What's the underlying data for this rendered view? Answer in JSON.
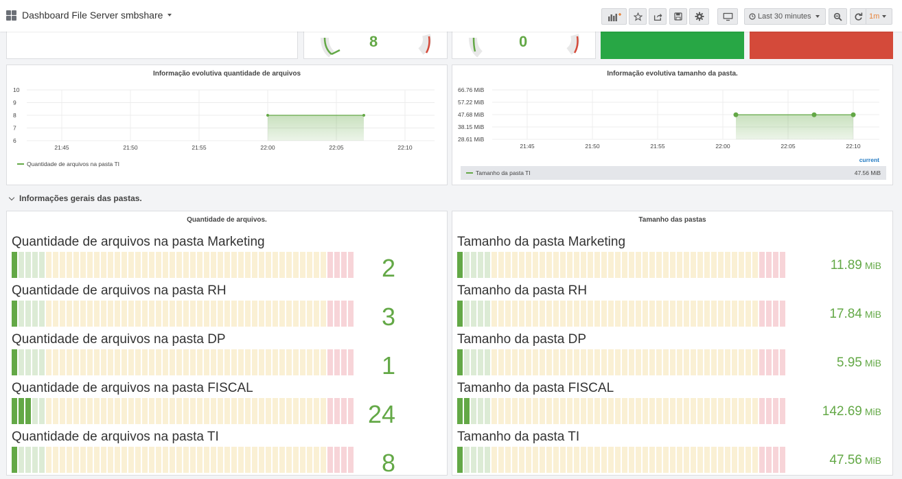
{
  "header": {
    "title": "Dashboard File Server smbshare",
    "time_range": "Last 30 minutes",
    "refresh": "1m"
  },
  "gauges": [
    {
      "value": "8"
    },
    {
      "value": "0"
    }
  ],
  "colors": {
    "ok": "#28a745",
    "alert": "#d44a3a",
    "series": "#63a846"
  },
  "chart_files": {
    "title": "Informação evolutiva quantidade de arquivos",
    "legend": "Quantidade de arquivos na pasta TI"
  },
  "chart_size": {
    "title": "Informação evolutiva tamanho da pasta.",
    "legend": "Tamanho da pasta TI",
    "legend_col": "current",
    "legend_value": "47.56 MiB"
  },
  "row": {
    "title": "Informações gerais das pastas."
  },
  "panel_count": {
    "title": "Quantidade de arquivos.",
    "items": [
      {
        "label": "Quantidade de arquivos na pasta Marketing",
        "value": "2",
        "level": 2
      },
      {
        "label": "Quantidade de arquivos na pasta RH",
        "value": "3",
        "level": 3
      },
      {
        "label": "Quantidade de arquivos na pasta DP",
        "value": "1",
        "level": 1
      },
      {
        "label": "Quantidade de arquivos na pasta FISCAL",
        "value": "24",
        "level": 24
      },
      {
        "label": "Quantidade de arquivos na pasta TI",
        "value": "8",
        "level": 8
      }
    ]
  },
  "panel_size": {
    "title": "Tamanho das pastas",
    "items": [
      {
        "label": "Tamanho da pasta Marketing",
        "value": "11.89",
        "unit": "MiB",
        "level": 11.89
      },
      {
        "label": "Tamanho da pasta RH",
        "value": "17.84",
        "unit": "MiB",
        "level": 17.84
      },
      {
        "label": "Tamanho da pasta DP",
        "value": "5.95",
        "unit": "MiB",
        "level": 5.95
      },
      {
        "label": "Tamanho da pasta FISCAL",
        "value": "142.69",
        "unit": "MiB",
        "level": 142.69
      },
      {
        "label": "Tamanho da pasta TI",
        "value": "47.56",
        "unit": "MiB",
        "level": 47.56
      }
    ]
  },
  "chart_data": [
    {
      "type": "area",
      "title": "Informação evolutiva quantidade de arquivos",
      "ylim": [
        6,
        10
      ],
      "y_ticks": [
        "10",
        "9",
        "8",
        "7",
        "6"
      ],
      "x_ticks": [
        "21:45",
        "21:50",
        "21:55",
        "22:00",
        "22:05",
        "22:10"
      ],
      "series": [
        {
          "name": "Quantidade de arquivos na pasta TI",
          "x": [
            "22:00",
            "22:07"
          ],
          "values": [
            8,
            8
          ]
        }
      ],
      "grid": true,
      "legend": "bottom-left"
    },
    {
      "type": "area",
      "title": "Informação evolutiva tamanho da pasta.",
      "y_ticks": [
        "66.76 MiB",
        "57.22 MiB",
        "47.68 MiB",
        "38.15 MiB",
        "28.61 MiB"
      ],
      "x_ticks": [
        "21:45",
        "21:50",
        "21:55",
        "22:00",
        "22:05",
        "22:10"
      ],
      "series": [
        {
          "name": "Tamanho da pasta TI",
          "x": [
            "22:01",
            "22:07",
            "22:10"
          ],
          "values": [
            47.56,
            47.56,
            47.56
          ]
        }
      ],
      "grid": true,
      "legend": "bottom-table"
    }
  ]
}
